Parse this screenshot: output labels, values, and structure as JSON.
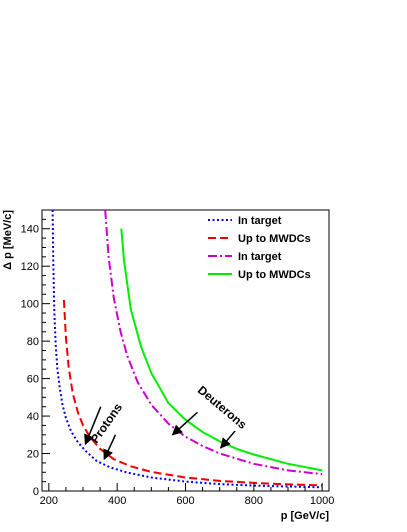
{
  "chart_data": {
    "type": "line",
    "xlabel": "p [GeV/c]",
    "ylabel": "Δ p [MeV/c]",
    "xlim": [
      180,
      1020
    ],
    "ylim": [
      0,
      150
    ],
    "x_ticks": [
      200,
      400,
      600,
      800,
      1000
    ],
    "y_ticks": [
      0,
      20,
      40,
      60,
      80,
      100,
      120,
      140
    ],
    "grid": false,
    "legend_position": "top-right",
    "series": [
      {
        "name": "In target",
        "color": "#0000ee",
        "style": "dotted",
        "x": [
          211,
          213,
          216,
          220,
          225,
          232,
          240,
          250,
          265,
          285,
          310,
          340,
          380,
          430,
          500,
          600,
          700,
          800,
          900,
          1000
        ],
        "y": [
          150,
          122,
          96,
          78,
          65,
          55,
          46,
          39,
          32,
          26,
          21,
          16,
          12.6,
          9.8,
          7.2,
          5.0,
          3.7,
          2.9,
          2.4,
          2.0
        ]
      },
      {
        "name": "Up to MWDCs",
        "color": "#ee0000",
        "style": "dashed",
        "x": [
          244,
          250,
          258,
          270,
          285,
          300,
          320,
          350,
          390,
          440,
          500,
          600,
          700,
          800,
          900,
          1000
        ],
        "y": [
          102,
          82,
          66,
          52,
          42,
          35,
          29,
          22.5,
          17,
          13.2,
          10.2,
          7.2,
          5.4,
          4.3,
          3.5,
          3.0
        ]
      },
      {
        "name": "In target",
        "color": "#cc00cc",
        "style": "dash-dot",
        "x": [
          365,
          375,
          390,
          410,
          430,
          460,
          500,
          550,
          600,
          650,
          700,
          800,
          900,
          1000
        ],
        "y": [
          150,
          125,
          103,
          85,
          72,
          58,
          46,
          36,
          29,
          24,
          20,
          14.5,
          11,
          9
        ]
      },
      {
        "name": "Up to MWDCs",
        "color": "#00ee00",
        "style": "solid",
        "x": [
          412,
          420,
          440,
          470,
          500,
          550,
          600,
          650,
          700,
          750,
          800,
          900,
          1000
        ],
        "y": [
          140,
          123,
          97,
          77,
          63,
          47,
          38,
          31.5,
          26.5,
          22.5,
          19.5,
          14.5,
          11
        ]
      }
    ],
    "annotations": [
      {
        "text": "Protons",
        "x": 378,
        "y": 35,
        "rotation": -55
      },
      {
        "text": "Deuterons",
        "x": 700,
        "y": 43,
        "rotation": 40
      }
    ],
    "arrows": [
      {
        "from": [
          352,
          45
        ],
        "to": [
          307,
          25
        ]
      },
      {
        "from": [
          395,
          30
        ],
        "to": [
          362,
          17
        ]
      },
      {
        "from": [
          635,
          42
        ],
        "to": [
          562,
          30
        ]
      },
      {
        "from": [
          745,
          32
        ],
        "to": [
          703,
          23
        ]
      }
    ]
  }
}
